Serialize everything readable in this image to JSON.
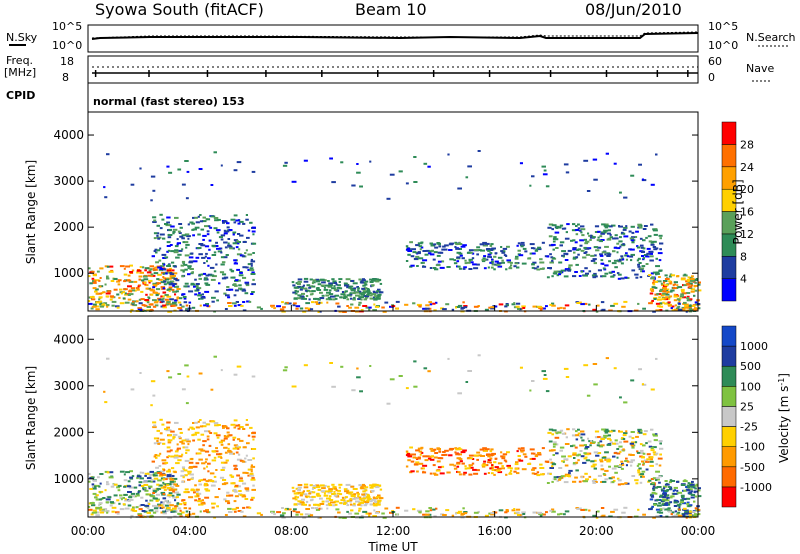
{
  "header": {
    "title": "Syowa South (fitACF)",
    "beam": "Beam 10",
    "date": "08/Jun/2010"
  },
  "summary_panels": {
    "nsky_label": "N.Sky",
    "nsky_ticks": [
      "10^5",
      "10^0"
    ],
    "nsearch_label": "N.Search",
    "nsearch_ticks": [
      "10^5",
      "10^0"
    ],
    "freq_label": "Freq.",
    "freq_unit": "[MHz]",
    "freq_ticks": [
      "18",
      "8"
    ],
    "nave_label": "Nave",
    "nave_ticks": [
      "60",
      "0"
    ],
    "cpid_label": "CPID",
    "cpid_text": "normal (fast stereo) 153"
  },
  "colors": {
    "power_scale": [
      "#0000ff",
      "#1e3ca0",
      "#2e8b57",
      "#5aa05a",
      "#ffd000",
      "#ffa000",
      "#ff7000",
      "#ff0000"
    ],
    "velocity_scale": [
      "#ff0000",
      "#ff6a00",
      "#ff9a00",
      "#ffd000",
      "#c8c8c8",
      "#7fc241",
      "#2e8b57",
      "#1e3ca0",
      "#1448c8"
    ]
  },
  "chart_data": [
    {
      "type": "heatmap",
      "name": "power",
      "ylabel": "Slant Range [km]",
      "yticks": [
        "1000",
        "2000",
        "3000",
        "4000"
      ],
      "ylim": [
        180,
        4500
      ],
      "x": [
        "00:00",
        "04:00",
        "08:00",
        "12:00",
        "16:00",
        "20:00",
        "00:00"
      ],
      "colorbar_label": "Power [dB]",
      "colorbar_ticks": [
        "4",
        "8",
        "12",
        "16",
        "20",
        "24",
        "28"
      ]
    },
    {
      "type": "heatmap",
      "name": "velocity",
      "ylabel": "Slant Range [km]",
      "yticks": [
        "1000",
        "2000",
        "3000",
        "4000"
      ],
      "ylim": [
        180,
        4500
      ],
      "x": [
        "00:00",
        "04:00",
        "08:00",
        "12:00",
        "16:00",
        "20:00",
        "00:00"
      ],
      "xlabel": "Time UT",
      "colorbar_label": "Velocity [m s^-1]",
      "colorbar_ticks": [
        "-1000",
        "-500",
        "-100",
        "-25",
        "25",
        "100",
        "500",
        "1000"
      ]
    }
  ]
}
